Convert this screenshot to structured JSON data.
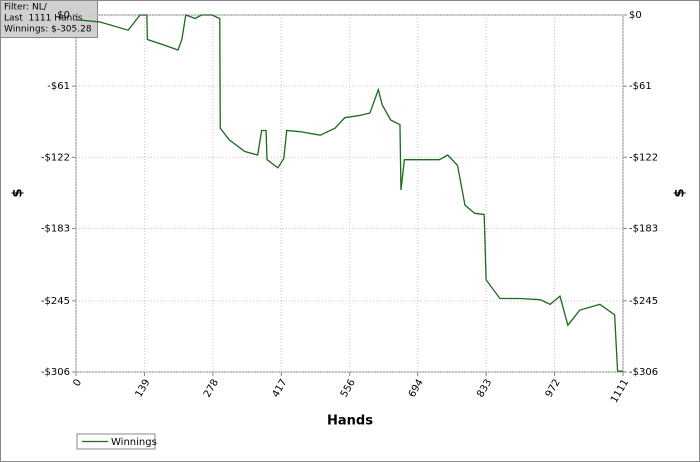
{
  "chart_data": {
    "type": "line",
    "annotations": [
      "Filter: NL/",
      "Last  1111 Hands",
      "Winnings: $-305.28"
    ],
    "x_label": "Hands",
    "y_label": "$",
    "y2_label": "$",
    "x": [
      0,
      49,
      106,
      130,
      144,
      145,
      181,
      207,
      215,
      223,
      242,
      255,
      276,
      292,
      293,
      311,
      343,
      369,
      377,
      386,
      388,
      410,
      422,
      428,
      455,
      496,
      526,
      546,
      577,
      597,
      614,
      622,
      639,
      658,
      660,
      667,
      697,
      738,
      755,
      775,
      790,
      810,
      829,
      833,
      861,
      902,
      943,
      963,
      983,
      999,
      1023,
      1064,
      1094,
      1100,
      1111
    ],
    "series": [
      {
        "name": "Winnings",
        "color": "#1a6b1a",
        "values": [
          -4,
          -6,
          -13,
          0,
          0,
          -21,
          -26,
          -30,
          -21,
          0,
          -3,
          0,
          0,
          -3,
          -97,
          -107,
          -117,
          -120,
          -99,
          -99,
          -124,
          -131,
          -123,
          -99,
          -100,
          -103,
          -97,
          -88,
          -86,
          -84,
          -64,
          -77,
          -90,
          -94,
          -150,
          -124,
          -124,
          -124,
          -120,
          -129,
          -163,
          -170,
          -171,
          -227,
          -243,
          -243,
          -244,
          -248,
          -241,
          -266,
          -253,
          -248,
          -257,
          -305.28,
          -305.28
        ]
      }
    ],
    "xlim": [
      0,
      1111
    ],
    "xticks": [
      0,
      139,
      278,
      417,
      556,
      694,
      833,
      972,
      1111
    ],
    "ylim": [
      -306,
      0
    ],
    "yticks": [
      {
        "value": 0,
        "label": "$0"
      },
      {
        "value": -61,
        "label": "-$61"
      },
      {
        "value": -122,
        "label": "-$122"
      },
      {
        "value": -183,
        "label": "-$183"
      },
      {
        "value": -245,
        "label": "-$245"
      },
      {
        "value": -306,
        "label": "-$306"
      }
    ],
    "grid": true,
    "legend": "bottom-left"
  }
}
